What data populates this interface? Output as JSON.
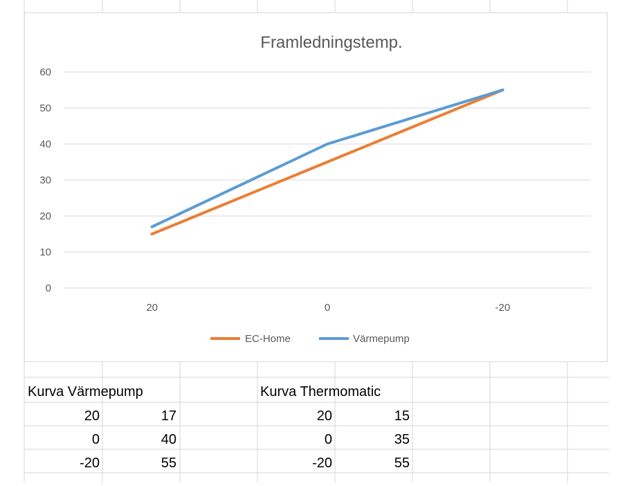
{
  "chart_data": {
    "type": "line",
    "title": "Framledningstemp.",
    "xlabel": "",
    "ylabel": "",
    "categories": [
      "20",
      "0",
      "-20"
    ],
    "ylim": [
      0,
      60
    ],
    "yticks": [
      "0",
      "10",
      "20",
      "30",
      "40",
      "50",
      "60"
    ],
    "grid": "horizontal",
    "legend_position": "bottom",
    "series": [
      {
        "name": "EC-Home",
        "values": [
          15,
          35,
          55
        ],
        "color": "#ED7D31"
      },
      {
        "name": "Värmepump",
        "values": [
          17,
          40,
          55
        ],
        "color": "#5B9BD5"
      }
    ]
  },
  "table": {
    "left": {
      "header": "Kurva Värmepump",
      "rows": [
        [
          "20",
          "17"
        ],
        [
          "0",
          "40"
        ],
        [
          "-20",
          "55"
        ]
      ]
    },
    "right": {
      "header": "Kurva Thermomatic",
      "rows": [
        [
          "20",
          "15"
        ],
        [
          "0",
          "35"
        ],
        [
          "-20",
          "55"
        ]
      ]
    }
  }
}
